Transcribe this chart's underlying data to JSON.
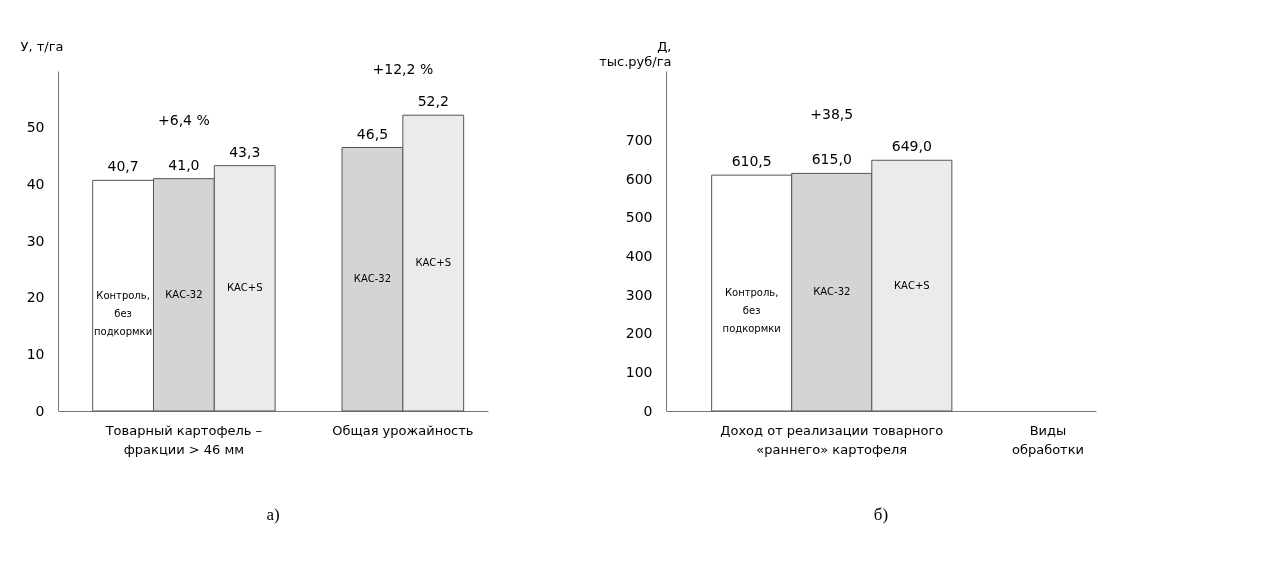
{
  "chart_data": [
    {
      "type": "bar",
      "ylabel": "У, т/га",
      "categories": [
        "Товарный картофель – фракции > 46 мм",
        "Общая урожайность"
      ],
      "series": [
        {
          "name": "Контроль, без подкормки",
          "color": "#ffffff",
          "values": [
            40.7,
            null
          ],
          "value_labels": [
            "40,7",
            null
          ]
        },
        {
          "name": "КАС-32",
          "color": "#d4d4d4",
          "values": [
            41.0,
            46.5
          ],
          "value_labels": [
            "41,0",
            "46,5"
          ]
        },
        {
          "name": "КАС+S",
          "color": "#ebebeb",
          "values": [
            43.3,
            52.2
          ],
          "value_labels": [
            "43,3",
            "52,2"
          ]
        }
      ],
      "ylim": [
        0,
        60
      ],
      "yticks": [
        0,
        10,
        20,
        30,
        40,
        50
      ],
      "grid": false,
      "title": "а)",
      "annotations": [
        "+6,4 %",
        "+12,2 %"
      ]
    },
    {
      "type": "bar",
      "ylabel": "Д, тыс.руб/га",
      "xlabel": "Виды обработки",
      "categories": [
        "Доход от реализации товарного «раннего» картофеля"
      ],
      "series": [
        {
          "name": "Контроль, без подкормки",
          "color": "#ffffff",
          "values": [
            610.5
          ],
          "value_labels": [
            "610,5"
          ]
        },
        {
          "name": "КАС-32",
          "color": "#d4d4d4",
          "values": [
            615.0
          ],
          "value_labels": [
            "615,0"
          ]
        },
        {
          "name": "КАС+S",
          "color": "#ebebeb",
          "values": [
            649.0
          ],
          "value_labels": [
            "649,0"
          ]
        }
      ],
      "ylim": [
        0,
        880
      ],
      "yticks": [
        0,
        100,
        200,
        300,
        400,
        500,
        600,
        700
      ],
      "grid": false,
      "title": "б)",
      "annotations": [
        "+38,5"
      ]
    }
  ]
}
